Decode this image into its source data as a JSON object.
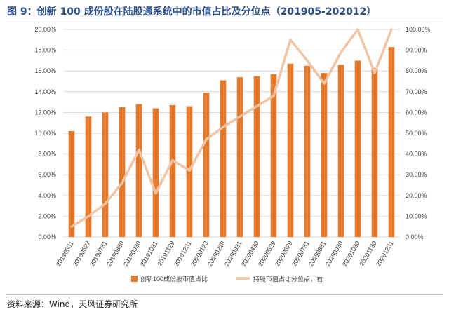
{
  "title": "图 9：创新 100 成份股在陆股通系统中的市值占比及分位点（201905-202012）",
  "source": "资料来源：Wind，天风证券研究所",
  "chart_data": {
    "type": "bar",
    "categories": [
      "20190531",
      "20190627",
      "20190731",
      "20190830",
      "20190930",
      "20191031",
      "20191129",
      "20191231",
      "20200123",
      "20200228",
      "20200331",
      "20200430",
      "20200529",
      "20200629",
      "20200731",
      "20200831",
      "20200930",
      "20201030",
      "20201130",
      "20201231"
    ],
    "series": [
      {
        "name": "创新100成份股市值占比",
        "type": "bar",
        "axis": "left",
        "color": "#e37a2b",
        "values": [
          10.2,
          11.6,
          12.0,
          12.5,
          12.8,
          12.4,
          12.7,
          12.6,
          13.9,
          15.1,
          15.4,
          15.5,
          15.7,
          16.7,
          16.5,
          15.8,
          16.6,
          17.0,
          16.3,
          18.3
        ]
      },
      {
        "name": "持股市值占比分位点，右",
        "type": "line",
        "axis": "right",
        "color": "#f0c4a4",
        "values": [
          5,
          10,
          16,
          26,
          42,
          21,
          37,
          32,
          47,
          53,
          58,
          63,
          68,
          95,
          85,
          74,
          89,
          100,
          79,
          100
        ]
      }
    ],
    "yticks_left": [
      "0.00%",
      "2.00%",
      "4.00%",
      "6.00%",
      "8.00%",
      "10.00%",
      "12.00%",
      "14.00%",
      "16.00%",
      "18.00%",
      "20.00%"
    ],
    "yticks_right": [
      "0.00%",
      "10.00%",
      "20.00%",
      "30.00%",
      "40.00%",
      "50.00%",
      "60.00%",
      "70.00%",
      "80.00%",
      "90.00%",
      "100.00%"
    ],
    "ylim_left": [
      0,
      20
    ],
    "ylim_right": [
      0,
      100
    ],
    "grid": true,
    "legend_position": "bottom"
  }
}
